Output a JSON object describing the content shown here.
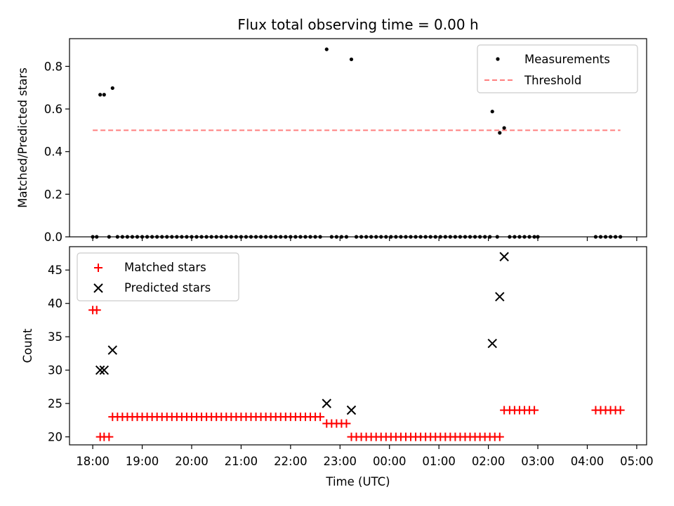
{
  "chart_data": [
    {
      "type": "scatter",
      "title": "Flux total observing time = 0.00 h",
      "ylabel": "Matched/Predicted stars",
      "ylim": [
        0,
        0.93
      ],
      "yticks": [
        "0.0",
        "0.2",
        "0.4",
        "0.6",
        "0.8"
      ],
      "ytick_values": [
        0.0,
        0.2,
        0.4,
        0.6,
        0.8
      ],
      "legend_placement": "top-right",
      "series": [
        {
          "name": "Measurements",
          "marker": "dot",
          "color": "#000000",
          "points": [
            [
              18.0,
              0
            ],
            [
              18.08,
              0
            ],
            [
              18.15,
              0.667
            ],
            [
              18.23,
              0.667
            ],
            [
              18.33,
              0
            ],
            [
              18.4,
              0.698
            ],
            [
              18.5,
              0
            ],
            [
              18.6,
              0
            ],
            [
              18.7,
              0
            ],
            [
              18.8,
              0
            ],
            [
              18.9,
              0
            ],
            [
              19.0,
              0
            ],
            [
              19.1,
              0
            ],
            [
              19.2,
              0
            ],
            [
              19.3,
              0
            ],
            [
              19.4,
              0
            ],
            [
              19.5,
              0
            ],
            [
              19.6,
              0
            ],
            [
              19.7,
              0
            ],
            [
              19.8,
              0
            ],
            [
              19.9,
              0
            ],
            [
              20.0,
              0
            ],
            [
              20.1,
              0
            ],
            [
              20.2,
              0
            ],
            [
              20.3,
              0
            ],
            [
              20.4,
              0
            ],
            [
              20.5,
              0
            ],
            [
              20.6,
              0
            ],
            [
              20.7,
              0
            ],
            [
              20.8,
              0
            ],
            [
              20.9,
              0
            ],
            [
              21.0,
              0
            ],
            [
              21.1,
              0
            ],
            [
              21.2,
              0
            ],
            [
              21.3,
              0
            ],
            [
              21.4,
              0
            ],
            [
              21.5,
              0
            ],
            [
              21.6,
              0
            ],
            [
              21.7,
              0
            ],
            [
              21.8,
              0
            ],
            [
              21.9,
              0
            ],
            [
              22.0,
              0
            ],
            [
              22.1,
              0
            ],
            [
              22.2,
              0
            ],
            [
              22.3,
              0
            ],
            [
              22.4,
              0
            ],
            [
              22.5,
              0
            ],
            [
              22.6,
              0
            ],
            [
              22.73,
              0.88
            ],
            [
              22.83,
              0
            ],
            [
              22.93,
              0
            ],
            [
              23.03,
              0
            ],
            [
              23.13,
              0
            ],
            [
              23.23,
              0.833
            ],
            [
              23.33,
              0
            ],
            [
              23.43,
              0
            ],
            [
              23.53,
              0
            ],
            [
              23.63,
              0
            ],
            [
              23.73,
              0
            ],
            [
              23.83,
              0
            ],
            [
              23.93,
              0
            ],
            [
              24.03,
              0
            ],
            [
              24.13,
              0
            ],
            [
              24.23,
              0
            ],
            [
              24.33,
              0
            ],
            [
              24.43,
              0
            ],
            [
              24.53,
              0
            ],
            [
              24.63,
              0
            ],
            [
              24.73,
              0
            ],
            [
              24.83,
              0
            ],
            [
              24.93,
              0
            ],
            [
              25.03,
              0
            ],
            [
              25.13,
              0
            ],
            [
              25.23,
              0
            ],
            [
              25.33,
              0
            ],
            [
              25.43,
              0
            ],
            [
              25.53,
              0
            ],
            [
              25.63,
              0
            ],
            [
              25.73,
              0
            ],
            [
              25.83,
              0
            ],
            [
              25.93,
              0
            ],
            [
              26.03,
              0
            ],
            [
              26.08,
              0.588
            ],
            [
              26.18,
              0
            ],
            [
              26.23,
              0.488
            ],
            [
              26.32,
              0.511
            ],
            [
              26.43,
              0
            ],
            [
              26.53,
              0
            ],
            [
              26.63,
              0
            ],
            [
              26.73,
              0
            ],
            [
              26.83,
              0
            ],
            [
              26.93,
              0
            ],
            [
              27.0,
              0
            ],
            [
              28.17,
              0
            ],
            [
              28.27,
              0
            ],
            [
              28.37,
              0
            ],
            [
              28.47,
              0
            ],
            [
              28.57,
              0
            ],
            [
              28.67,
              0
            ]
          ]
        },
        {
          "name": "Threshold",
          "marker": "dashed-line",
          "color": "#ff7f7f",
          "points": [
            [
              18.0,
              0.5
            ],
            [
              28.67,
              0.5
            ]
          ]
        }
      ]
    },
    {
      "type": "scatter",
      "xlabel": "Time (UTC)",
      "ylabel": "Count",
      "ylim": [
        18.8,
        48.5
      ],
      "yticks": [
        "20",
        "25",
        "30",
        "35",
        "40",
        "45"
      ],
      "ytick_values": [
        20,
        25,
        30,
        35,
        40,
        45
      ],
      "xlim": [
        17.53,
        29.2
      ],
      "xticks": [
        "18:00",
        "19:00",
        "20:00",
        "21:00",
        "22:00",
        "23:00",
        "00:00",
        "01:00",
        "02:00",
        "03:00",
        "04:00",
        "05:00"
      ],
      "xtick_values": [
        18,
        19,
        20,
        21,
        22,
        23,
        24,
        25,
        26,
        27,
        28,
        29
      ],
      "legend_placement": "top-left",
      "series": [
        {
          "name": "Matched stars",
          "marker": "plus",
          "color": "#ff0000",
          "points": [
            [
              18.0,
              39
            ],
            [
              18.08,
              39
            ],
            [
              18.15,
              20
            ],
            [
              18.23,
              20
            ],
            [
              18.33,
              20
            ],
            [
              18.4,
              23
            ],
            [
              18.5,
              23
            ],
            [
              18.6,
              23
            ],
            [
              18.7,
              23
            ],
            [
              18.8,
              23
            ],
            [
              18.9,
              23
            ],
            [
              19.0,
              23
            ],
            [
              19.1,
              23
            ],
            [
              19.2,
              23
            ],
            [
              19.3,
              23
            ],
            [
              19.4,
              23
            ],
            [
              19.5,
              23
            ],
            [
              19.6,
              23
            ],
            [
              19.7,
              23
            ],
            [
              19.8,
              23
            ],
            [
              19.9,
              23
            ],
            [
              20.0,
              23
            ],
            [
              20.1,
              23
            ],
            [
              20.2,
              23
            ],
            [
              20.3,
              23
            ],
            [
              20.4,
              23
            ],
            [
              20.5,
              23
            ],
            [
              20.6,
              23
            ],
            [
              20.7,
              23
            ],
            [
              20.8,
              23
            ],
            [
              20.9,
              23
            ],
            [
              21.0,
              23
            ],
            [
              21.1,
              23
            ],
            [
              21.2,
              23
            ],
            [
              21.3,
              23
            ],
            [
              21.4,
              23
            ],
            [
              21.5,
              23
            ],
            [
              21.6,
              23
            ],
            [
              21.7,
              23
            ],
            [
              21.8,
              23
            ],
            [
              21.9,
              23
            ],
            [
              22.0,
              23
            ],
            [
              22.1,
              23
            ],
            [
              22.2,
              23
            ],
            [
              22.3,
              23
            ],
            [
              22.4,
              23
            ],
            [
              22.5,
              23
            ],
            [
              22.6,
              23
            ],
            [
              22.73,
              22
            ],
            [
              22.83,
              22
            ],
            [
              22.93,
              22
            ],
            [
              23.03,
              22
            ],
            [
              23.13,
              22
            ],
            [
              23.23,
              20
            ],
            [
              23.33,
              20
            ],
            [
              23.43,
              20
            ],
            [
              23.53,
              20
            ],
            [
              23.63,
              20
            ],
            [
              23.73,
              20
            ],
            [
              23.83,
              20
            ],
            [
              23.93,
              20
            ],
            [
              24.03,
              20
            ],
            [
              24.13,
              20
            ],
            [
              24.23,
              20
            ],
            [
              24.33,
              20
            ],
            [
              24.43,
              20
            ],
            [
              24.53,
              20
            ],
            [
              24.63,
              20
            ],
            [
              24.73,
              20
            ],
            [
              24.83,
              20
            ],
            [
              24.93,
              20
            ],
            [
              25.03,
              20
            ],
            [
              25.13,
              20
            ],
            [
              25.23,
              20
            ],
            [
              25.33,
              20
            ],
            [
              25.43,
              20
            ],
            [
              25.53,
              20
            ],
            [
              25.63,
              20
            ],
            [
              25.73,
              20
            ],
            [
              25.83,
              20
            ],
            [
              25.93,
              20
            ],
            [
              26.03,
              20
            ],
            [
              26.13,
              20
            ],
            [
              26.23,
              20
            ],
            [
              26.32,
              24
            ],
            [
              26.43,
              24
            ],
            [
              26.53,
              24
            ],
            [
              26.63,
              24
            ],
            [
              26.73,
              24
            ],
            [
              26.83,
              24
            ],
            [
              26.93,
              24
            ],
            [
              28.17,
              24
            ],
            [
              28.27,
              24
            ],
            [
              28.37,
              24
            ],
            [
              28.47,
              24
            ],
            [
              28.57,
              24
            ],
            [
              28.67,
              24
            ]
          ]
        },
        {
          "name": "Predicted stars",
          "marker": "x",
          "color": "#000000",
          "points": [
            [
              18.15,
              30
            ],
            [
              18.23,
              30
            ],
            [
              18.4,
              33
            ],
            [
              22.73,
              25
            ],
            [
              23.23,
              24
            ],
            [
              26.08,
              34
            ],
            [
              26.23,
              41
            ],
            [
              26.32,
              47
            ]
          ]
        }
      ]
    }
  ]
}
